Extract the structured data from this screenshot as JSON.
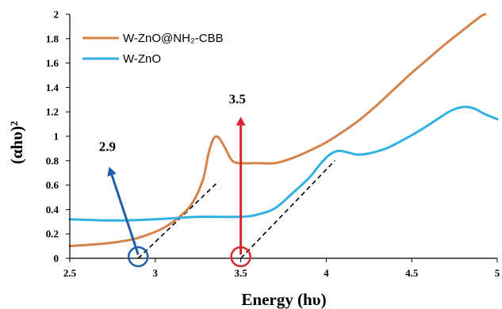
{
  "chart_data": {
    "type": "line",
    "xlabel": "Energy (hυ)",
    "ylabel": "(αhυ)²",
    "xlim": [
      2.5,
      5
    ],
    "ylim": [
      0,
      2
    ],
    "x_ticks": [
      "2.5",
      "3",
      "3.5",
      "4",
      "4.5",
      "5"
    ],
    "y_ticks": [
      "0",
      "0.2",
      "0.4",
      "0.6",
      "0.8",
      "1",
      "1.2",
      "1.4",
      "1.6",
      "1.8",
      "2"
    ],
    "legend_position": "top-left",
    "series": [
      {
        "name": "W-ZnO@NH₂-CBB",
        "color": "#D4844A",
        "points": [
          [
            2.5,
            0.1
          ],
          [
            2.7,
            0.12
          ],
          [
            2.85,
            0.15
          ],
          [
            2.95,
            0.19
          ],
          [
            3.05,
            0.25
          ],
          [
            3.15,
            0.35
          ],
          [
            3.22,
            0.46
          ],
          [
            3.28,
            0.65
          ],
          [
            3.31,
            0.85
          ],
          [
            3.34,
            0.98
          ],
          [
            3.37,
            0.99
          ],
          [
            3.41,
            0.9
          ],
          [
            3.45,
            0.8
          ],
          [
            3.5,
            0.78
          ],
          [
            3.6,
            0.78
          ],
          [
            3.7,
            0.78
          ],
          [
            3.8,
            0.82
          ],
          [
            3.9,
            0.88
          ],
          [
            4.0,
            0.95
          ],
          [
            4.1,
            1.04
          ],
          [
            4.2,
            1.14
          ],
          [
            4.3,
            1.26
          ],
          [
            4.4,
            1.39
          ],
          [
            4.5,
            1.52
          ],
          [
            4.6,
            1.64
          ],
          [
            4.7,
            1.76
          ],
          [
            4.8,
            1.87
          ],
          [
            4.9,
            1.98
          ],
          [
            4.93,
            2.0
          ]
        ]
      },
      {
        "name": "W-ZnO",
        "color": "#33B1E0",
        "points": [
          [
            2.5,
            0.32
          ],
          [
            2.75,
            0.31
          ],
          [
            3.0,
            0.32
          ],
          [
            3.25,
            0.34
          ],
          [
            3.5,
            0.34
          ],
          [
            3.6,
            0.36
          ],
          [
            3.7,
            0.41
          ],
          [
            3.8,
            0.53
          ],
          [
            3.9,
            0.66
          ],
          [
            3.97,
            0.78
          ],
          [
            4.02,
            0.85
          ],
          [
            4.07,
            0.88
          ],
          [
            4.12,
            0.87
          ],
          [
            4.18,
            0.85
          ],
          [
            4.25,
            0.86
          ],
          [
            4.35,
            0.9
          ],
          [
            4.45,
            0.97
          ],
          [
            4.55,
            1.05
          ],
          [
            4.65,
            1.14
          ],
          [
            4.73,
            1.21
          ],
          [
            4.8,
            1.24
          ],
          [
            4.86,
            1.23
          ],
          [
            4.93,
            1.18
          ],
          [
            5.0,
            1.14
          ]
        ]
      }
    ],
    "annotations": [
      {
        "text": "2.9",
        "value_x": 2.9,
        "label_at": [
          2.72,
          0.88
        ],
        "color": "#1F5FA8",
        "arrow_from": [
          2.9,
          0.03
        ],
        "arrow_to": [
          2.73,
          0.75
        ],
        "tangent": [
          [
            2.9,
            0
          ],
          [
            3.37,
            0.63
          ]
        ]
      },
      {
        "text": "3.5",
        "value_x": 3.5,
        "label_at": [
          3.48,
          1.27
        ],
        "color": "#D8262C",
        "arrow_from": [
          3.5,
          0.03
        ],
        "arrow_to": [
          3.5,
          1.16
        ],
        "tangent": [
          [
            3.5,
            0
          ],
          [
            4.05,
            0.8
          ]
        ]
      }
    ]
  }
}
